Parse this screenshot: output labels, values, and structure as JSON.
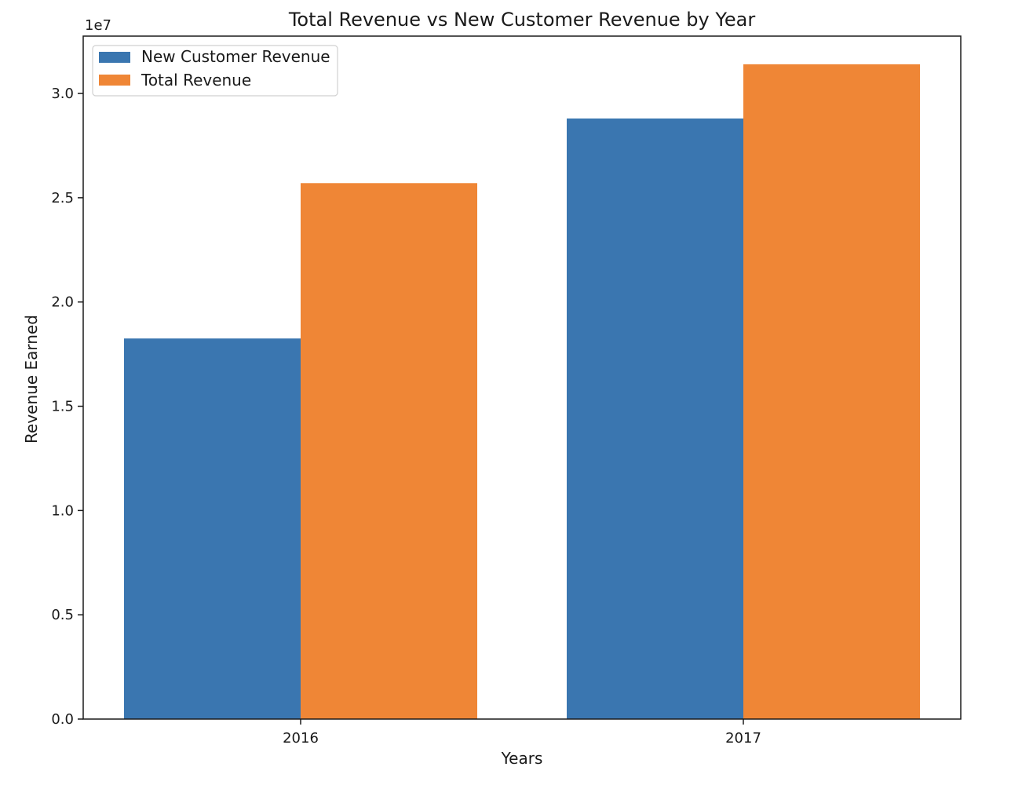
{
  "colors": {
    "new_customer": "#3a76b0",
    "total": "#ef8636",
    "axis": "#1a1a1a",
    "legend_border": "#d0d0d0"
  },
  "chart_data": {
    "type": "bar",
    "title": "Total Revenue vs New Customer Revenue by Year",
    "xlabel": "Years",
    "ylabel": "Revenue Earned",
    "offset_text": "1e7",
    "categories": [
      "2016",
      "2017"
    ],
    "series": [
      {
        "name": "New Customer Revenue",
        "values": [
          18250000,
          28800000
        ]
      },
      {
        "name": "Total Revenue",
        "values": [
          25700000,
          31400000
        ]
      }
    ],
    "ylim": [
      0,
      32750000
    ],
    "yticks": [
      0,
      5000000,
      10000000,
      15000000,
      20000000,
      25000000,
      30000000
    ],
    "ytick_labels": [
      "0.0",
      "0.5",
      "1.0",
      "1.5",
      "2.0",
      "2.5",
      "3.0"
    ],
    "grid": false,
    "legend_position": "top-left"
  }
}
